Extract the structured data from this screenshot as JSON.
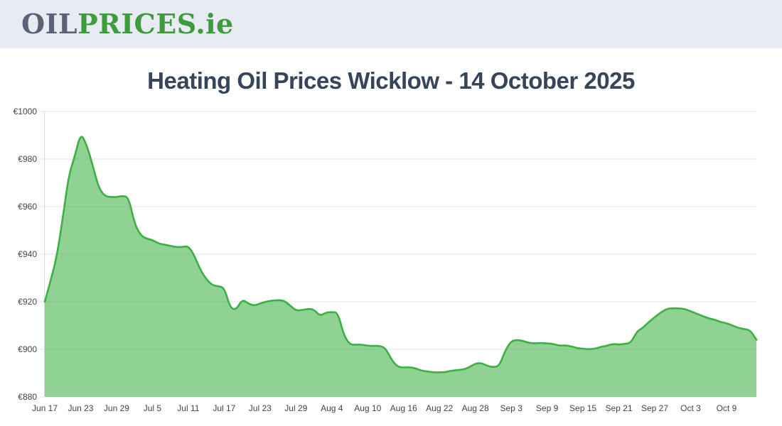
{
  "header": {
    "logo": {
      "part1": "OIL",
      "part2": "PRICES",
      "part3": ".ie"
    }
  },
  "page": {
    "title": "Heating Oil Prices Wicklow - 14 October 2025"
  },
  "chart_data": {
    "type": "area",
    "title": "Heating Oil Prices Wicklow - 14 October 2025",
    "currency_symbol": "€",
    "ylim": [
      880,
      1000
    ],
    "yticks": [
      1000,
      980,
      960,
      940,
      920,
      900,
      880
    ],
    "ytick_labels": [
      "€1000",
      "€980",
      "€960",
      "€940",
      "€920",
      "€900",
      "€880"
    ],
    "xtick_labels": [
      "Jun 17",
      "Jun 23",
      "Jun 29",
      "Jul 5",
      "Jul 11",
      "Jul 17",
      "Jul 23",
      "Jul 29",
      "Aug 4",
      "Aug 10",
      "Aug 16",
      "Aug 22",
      "Aug 28",
      "Sep 3",
      "Sep 9",
      "Sep 15",
      "Sep 21",
      "Sep 27",
      "Oct 3",
      "Oct 9"
    ],
    "xtick_day_indices": [
      0,
      6,
      12,
      18,
      24,
      30,
      36,
      42,
      48,
      54,
      60,
      66,
      72,
      78,
      84,
      90,
      96,
      102,
      108,
      114
    ],
    "x_interval": "daily",
    "grid": true,
    "legend": "none",
    "line_color": "#3cb043",
    "fill_color": "#3cb043",
    "fill_opacity": 0.57,
    "grid_color": "#e3e3e3",
    "axis_line_color": "#d9d9d9",
    "series": [
      {
        "name": "Heating Oil Price",
        "values": [
          920,
          929,
          939,
          955,
          973,
          981,
          991,
          986,
          977.5,
          968,
          964.5,
          964,
          964,
          964.5,
          964,
          953,
          948,
          946.5,
          946,
          944.5,
          944,
          943.5,
          943,
          943,
          943.5,
          939.5,
          933.5,
          929.5,
          927,
          926.5,
          926,
          917.5,
          916.5,
          921,
          919.3,
          918.3,
          919.3,
          920,
          920.5,
          920.7,
          920.5,
          918.5,
          916.3,
          916.5,
          917,
          916.8,
          914,
          915.5,
          915.7,
          915.5,
          906,
          902,
          901.9,
          902,
          901.5,
          901.4,
          901.5,
          900.5,
          895.5,
          892.7,
          892.3,
          892.5,
          892,
          891,
          890.7,
          890.3,
          890.3,
          890.4,
          891,
          891.3,
          891.5,
          892.5,
          894,
          894.3,
          893,
          892.5,
          893,
          899.5,
          903.5,
          904,
          903.5,
          902.7,
          902.5,
          902.7,
          902.5,
          902.3,
          901.5,
          901.7,
          901.3,
          900.5,
          900.3,
          900,
          900.3,
          901,
          901.5,
          902.3,
          902,
          902.3,
          902.7,
          907.5,
          909,
          911.5,
          913.5,
          915.5,
          917,
          917.3,
          917.2,
          917,
          916,
          915,
          914,
          913,
          912.5,
          911.5,
          911,
          910,
          909,
          908.5,
          908,
          904
        ]
      }
    ]
  }
}
